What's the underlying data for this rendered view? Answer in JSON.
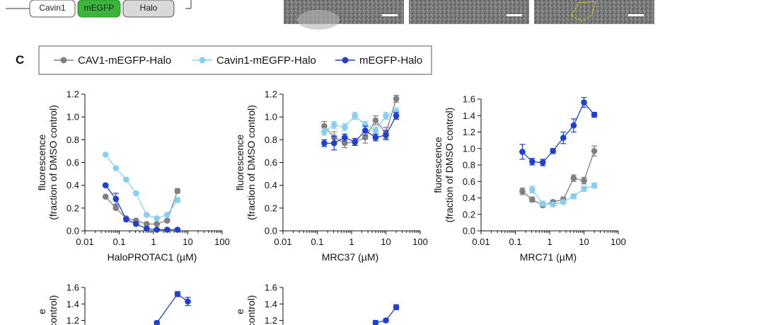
{
  "panel_label": "C",
  "construct": {
    "parts": [
      "Cavin1",
      "mEGFP",
      "Halo"
    ]
  },
  "legend": [
    {
      "label": "CAV1-mEGFP-Halo",
      "color": "#808080"
    },
    {
      "label": "Cavin1-mEGFP-Halo",
      "color": "#87cef0"
    },
    {
      "label": "mEGFP-Halo",
      "color": "#1f3fd0"
    }
  ],
  "colors": {
    "grey": "#808080",
    "lightblue": "#87cef0",
    "blue": "#1f3fd0",
    "construct_green": "#3cb43c"
  },
  "chart_data": [
    {
      "type": "line",
      "title": "",
      "xlabel": "HaloPROTAC1 (µM)",
      "ylabel": [
        "fluorescence",
        "(fraction of DMSO control)"
      ],
      "xscale": "log",
      "xlim": [
        0.01,
        100
      ],
      "ylim": [
        0,
        1.2
      ],
      "xticks": [
        "0.01",
        "0.1",
        "1",
        "10",
        "100"
      ],
      "yticks": [
        "0.0",
        "0.2",
        "0.4",
        "0.6",
        "0.8",
        "1.0",
        "1.2"
      ],
      "series": [
        {
          "name": "CAV1-mEGFP-Halo",
          "x": [
            0.04,
            0.08,
            0.16,
            0.31,
            0.63,
            1.25,
            2.5,
            5
          ],
          "y": [
            0.3,
            0.2,
            0.11,
            0.09,
            0.06,
            0.06,
            0.09,
            0.35
          ],
          "err": [
            0.01,
            0.01,
            0.01,
            0.01,
            0.01,
            0.01,
            0.01,
            0.02
          ]
        },
        {
          "name": "Cavin1-mEGFP-Halo",
          "x": [
            0.04,
            0.08,
            0.16,
            0.31,
            0.63,
            1.25,
            2.5,
            5
          ],
          "y": [
            0.67,
            0.55,
            0.45,
            0.33,
            0.14,
            0.11,
            0.14,
            0.27
          ],
          "err": [
            0.01,
            0.01,
            0.01,
            0.01,
            0.01,
            0.01,
            0.01,
            0.02
          ]
        },
        {
          "name": "mEGFP-Halo",
          "x": [
            0.04,
            0.08,
            0.16,
            0.31,
            0.63,
            1.25,
            2.5,
            5
          ],
          "y": [
            0.4,
            0.28,
            0.1,
            0.06,
            0.02,
            0.01,
            0.01,
            0.01
          ],
          "err": [
            0.01,
            0.05,
            0.01,
            0.01,
            0.01,
            0.01,
            0.01,
            0.01
          ]
        }
      ]
    },
    {
      "type": "line",
      "title": "",
      "xlabel": "MRC37 (µM)",
      "ylabel": [
        "fluorescence",
        "(fraction of DMSO control)"
      ],
      "xscale": "log",
      "xlim": [
        0.01,
        100
      ],
      "ylim": [
        0,
        1.2
      ],
      "xticks": [
        "0.01",
        "0.1",
        "1",
        "10",
        "100"
      ],
      "yticks": [
        "0.0",
        "0.2",
        "0.4",
        "0.6",
        "0.8",
        "1.0",
        "1.2"
      ],
      "series": [
        {
          "name": "CAV1-mEGFP-Halo",
          "x": [
            0.16,
            0.31,
            0.63,
            1.25,
            2.5,
            5,
            10,
            20
          ],
          "y": [
            0.92,
            0.82,
            0.77,
            0.78,
            0.82,
            0.97,
            0.86,
            1.16
          ],
          "err": [
            0.04,
            0.05,
            0.04,
            0.03,
            0.05,
            0.04,
            0.05,
            0.03
          ]
        },
        {
          "name": "Cavin1-mEGFP-Halo",
          "x": [
            0.16,
            0.31,
            0.63,
            1.25,
            2.5,
            5,
            10,
            20
          ],
          "y": [
            0.87,
            0.93,
            0.91,
            1.01,
            0.93,
            0.88,
            1.01,
            1.05
          ],
          "err": [
            0.03,
            0.03,
            0.03,
            0.03,
            0.03,
            0.03,
            0.03,
            0.03
          ]
        },
        {
          "name": "mEGFP-Halo",
          "x": [
            0.16,
            0.31,
            0.63,
            1.25,
            2.5,
            5,
            10,
            20
          ],
          "y": [
            0.77,
            0.77,
            0.82,
            0.78,
            0.88,
            0.82,
            0.84,
            1.01
          ],
          "err": [
            0.03,
            0.06,
            0.03,
            0.03,
            0.04,
            0.03,
            0.04,
            0.03
          ]
        }
      ]
    },
    {
      "type": "line",
      "title": "",
      "xlabel": "MRC71 (µM)",
      "ylabel": [
        "fluorescence",
        "(fraction of DMSO control)"
      ],
      "xscale": "log",
      "xlim": [
        0.01,
        100
      ],
      "ylim": [
        0,
        1.6
      ],
      "xticks": [
        "0.01",
        "0.1",
        "1",
        "10",
        "100"
      ],
      "yticks": [
        "0.0",
        "0.2",
        "0.4",
        "0.6",
        "0.8",
        "1.0",
        "1.2",
        "1.4",
        "1.6"
      ],
      "series": [
        {
          "name": "CAV1-mEGFP-Halo",
          "x": [
            0.16,
            0.31,
            0.63,
            1.25,
            2.5,
            5,
            10,
            20
          ],
          "y": [
            0.48,
            0.38,
            0.31,
            0.35,
            0.38,
            0.64,
            0.61,
            0.97
          ],
          "err": [
            0.04,
            0.03,
            0.02,
            0.02,
            0.03,
            0.04,
            0.04,
            0.06
          ]
        },
        {
          "name": "Cavin1-mEGFP-Halo",
          "x": [
            0.31,
            0.63,
            1.25,
            2.5,
            5,
            10,
            20
          ],
          "y": [
            0.5,
            0.33,
            0.32,
            0.35,
            0.42,
            0.51,
            0.55
          ],
          "err": [
            0.04,
            0.03,
            0.02,
            0.02,
            0.03,
            0.03,
            0.03
          ]
        },
        {
          "name": "mEGFP-Halo",
          "x": [
            0.16,
            0.31,
            0.63,
            1.25,
            2.5,
            5,
            10,
            20
          ],
          "y": [
            0.96,
            0.84,
            0.83,
            0.97,
            1.13,
            1.28,
            1.56,
            1.41
          ],
          "err": [
            0.09,
            0.04,
            0.04,
            0.03,
            0.07,
            0.08,
            0.06,
            0.03
          ]
        }
      ]
    },
    {
      "type": "line",
      "title": "",
      "xlabel": "",
      "ylabel": [
        "e",
        "control)"
      ],
      "xscale": "log",
      "xlim": [
        0.01,
        100
      ],
      "ylim": [
        0,
        1.6
      ],
      "xticks": [],
      "yticks": [
        "1.2",
        "1.4",
        "1.6"
      ],
      "series": [
        {
          "name": "mEGFP-Halo",
          "x": [
            1.25,
            5,
            10
          ],
          "y": [
            1.17,
            1.52,
            1.43
          ],
          "err": [
            0.02,
            0.03,
            0.05
          ]
        }
      ]
    },
    {
      "type": "line",
      "title": "",
      "xlabel": "",
      "ylabel": [
        "e",
        "control)"
      ],
      "xscale": "log",
      "xlim": [
        0.01,
        100
      ],
      "ylim": [
        0,
        1.6
      ],
      "xticks": [],
      "yticks": [
        "1.2",
        "1.4",
        "1.6"
      ],
      "series": [
        {
          "name": "mEGFP-Halo",
          "x": [
            5,
            10,
            20
          ],
          "y": [
            1.17,
            1.2,
            1.36
          ],
          "err": [
            0.03,
            0.02,
            0.03
          ]
        }
      ]
    }
  ]
}
